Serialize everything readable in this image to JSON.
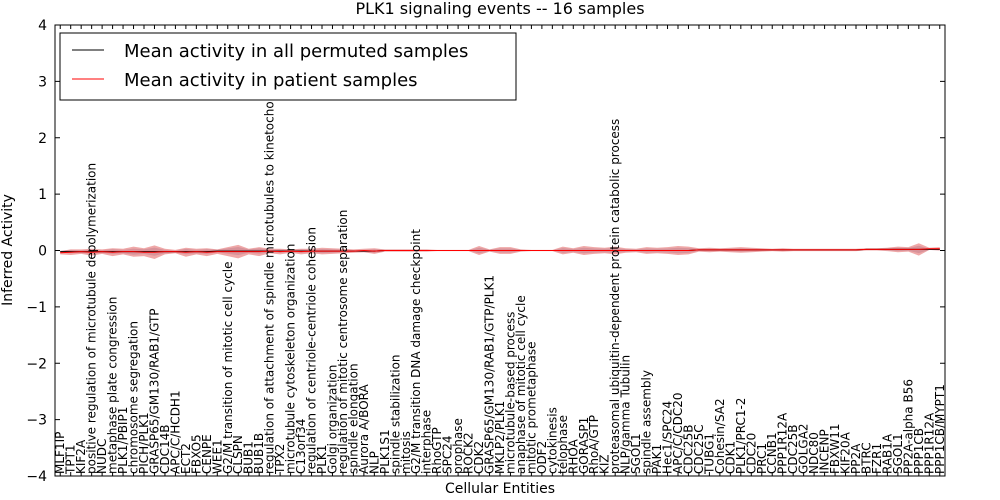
{
  "chart_data": {
    "type": "line",
    "title": "PLK1 signaling events -- 16 samples",
    "xlabel": "Cellular Entities",
    "ylabel": "Inferred Activity",
    "ylim": [
      -4,
      4
    ],
    "yticks": [
      4,
      3,
      2,
      1,
      0,
      -1,
      -2,
      -3,
      -4
    ],
    "legend_position": "top-left",
    "colors": {
      "permuted": "#000000",
      "patient": "#ff0000",
      "patient_band": "#e05252",
      "permuted_band": "#9aa0c0"
    },
    "categories": [
      "MLF1IP",
      "TPT1",
      "KIF2A",
      "positive regulation of microtubule depolymerization",
      "NUDC",
      "metaphase plate congression",
      "PLK1/PBIP1",
      "chromosome segregation",
      "PICH/PLK1",
      "GRASP65/GM130/RAB1/GTP",
      "CDC14B",
      "APC/C/HCDH1",
      "ECT2",
      "FBXO5",
      "CENPE",
      "WEE1",
      "G2/M transition of mitotic cell cycle",
      "CLSPN",
      "BUB1",
      "BUB1B",
      "regulation of attachment of spindle microtubules to kinetochore",
      "TPX2",
      "microtubule cytoskeleton organization",
      "C13orf34",
      "regulation of centriole-centriole cohesion",
      "PLK1",
      "Golgi organization",
      "regulation of mitotic centrosome separation",
      "spindle elongation",
      "Aurora A/BORA",
      "NLP",
      "PLK1S1",
      "spindle stabilization",
      "mitosis",
      "G2/M transition DNA damage checkpoint",
      "interphase",
      "RhoGTP",
      "SPC24",
      "prophase",
      "ROCK2",
      "CDK2",
      "GRASP65/GM130/RAB1/GTP/PLK1",
      "MKLP2/PLK1",
      "microtubule-based process",
      "anaphase of mitotic cell cycle",
      "mitotic prometaphase",
      "ODF2",
      "cytokinesis",
      "telophase",
      "RHOA",
      "GORASP1",
      "RhoA/GTP",
      "KIZ",
      "proteasomal ubiquitin-dependent protein catabolic process",
      "NLP/gamma Tubulin",
      "SGOL1",
      "spindle assembly",
      "PAK1",
      "Hec1/SPC24",
      "APC/C/CDC20",
      "CDC25B",
      "CDC25C",
      "TUBG1",
      "Cohesin/SA2",
      "CDK1",
      "PLK1/PRC1-2",
      "CDC20",
      "PRC1",
      "CCNB1",
      "PPP1R12A",
      "CDC25B",
      "GOLGA2",
      "NDC80",
      "INCENP",
      "FBXW11",
      "KIF20A",
      "PP2A",
      "BTRC",
      "FZR1",
      "RAB1A",
      "SGOL1",
      "PP2A-alpha B56",
      "PPP1CB",
      "PPP1R12A",
      "PPP1CB/MYPT1"
    ],
    "series": [
      {
        "name": "Mean activity in all permuted samples",
        "values": [
          -0.02,
          -0.02,
          -0.02,
          -0.02,
          -0.02,
          -0.02,
          -0.02,
          -0.02,
          -0.02,
          -0.02,
          -0.02,
          -0.02,
          -0.02,
          -0.02,
          -0.02,
          -0.01,
          -0.01,
          -0.01,
          -0.01,
          -0.01,
          -0.01,
          -0.01,
          -0.01,
          -0.01,
          -0.01,
          -0.01,
          -0.01,
          -0.01,
          -0.01,
          -0.01,
          -0.01,
          0.0,
          0.0,
          0.0,
          0.0,
          0.0,
          0.0,
          0.0,
          0.0,
          0.0,
          0.0,
          0.0,
          0.0,
          0.0,
          0.0,
          0.0,
          0.0,
          0.0,
          0.0,
          0.0,
          0.0,
          0.0,
          0.0,
          0.0,
          0.0,
          0.0,
          0.0,
          0.0,
          0.0,
          0.0,
          0.0,
          0.01,
          0.01,
          0.01,
          0.01,
          0.01,
          0.01,
          0.01,
          0.01,
          0.01,
          0.01,
          0.01,
          0.01,
          0.01,
          0.01,
          0.01,
          0.01,
          0.02,
          0.02,
          0.02,
          0.02,
          0.02,
          0.02,
          0.02,
          0.02
        ]
      },
      {
        "name": "Mean activity in patient samples",
        "values": [
          -0.04,
          -0.03,
          -0.02,
          -0.03,
          -0.02,
          -0.03,
          -0.02,
          -0.02,
          -0.03,
          -0.03,
          -0.02,
          -0.02,
          -0.03,
          -0.02,
          -0.03,
          -0.02,
          -0.02,
          -0.02,
          -0.02,
          -0.02,
          -0.01,
          -0.02,
          -0.01,
          -0.02,
          -0.01,
          -0.01,
          -0.01,
          -0.01,
          -0.01,
          0.0,
          -0.01,
          0.0,
          0.0,
          0.0,
          0.0,
          0.0,
          0.0,
          0.0,
          0.0,
          0.0,
          0.0,
          0.0,
          0.0,
          0.0,
          0.0,
          0.0,
          0.0,
          0.0,
          0.0,
          0.0,
          0.0,
          0.0,
          0.0,
          0.0,
          0.0,
          0.0,
          0.0,
          0.0,
          0.0,
          0.0,
          0.0,
          0.01,
          0.01,
          0.01,
          0.01,
          0.01,
          0.01,
          0.01,
          0.01,
          0.01,
          0.01,
          0.01,
          0.01,
          0.01,
          0.01,
          0.01,
          0.01,
          0.02,
          0.02,
          0.02,
          0.02,
          0.02,
          0.02,
          0.03,
          0.03
        ],
        "spread": [
          0.03,
          0.05,
          0.04,
          0.06,
          0.04,
          0.07,
          0.05,
          0.09,
          0.07,
          0.12,
          0.05,
          0.03,
          0.08,
          0.05,
          0.07,
          0.04,
          0.08,
          0.12,
          0.05,
          0.08,
          0.04,
          0.05,
          0.03,
          0.05,
          0.04,
          0.06,
          0.05,
          0.04,
          0.03,
          0.03,
          0.05,
          0.02,
          0.02,
          0.02,
          0.02,
          0.02,
          0.01,
          0.01,
          0.01,
          0.01,
          0.08,
          0.02,
          0.06,
          0.06,
          0.02,
          0.01,
          0.01,
          0.01,
          0.07,
          0.04,
          0.08,
          0.06,
          0.05,
          0.07,
          0.04,
          0.03,
          0.06,
          0.05,
          0.06,
          0.08,
          0.07,
          0.03,
          0.04,
          0.03,
          0.04,
          0.05,
          0.04,
          0.03,
          0.02,
          0.03,
          0.02,
          0.02,
          0.02,
          0.02,
          0.02,
          0.02,
          0.02,
          0.02,
          0.02,
          0.03,
          0.05,
          0.04,
          0.11,
          0.02,
          0.03
        ]
      }
    ]
  }
}
